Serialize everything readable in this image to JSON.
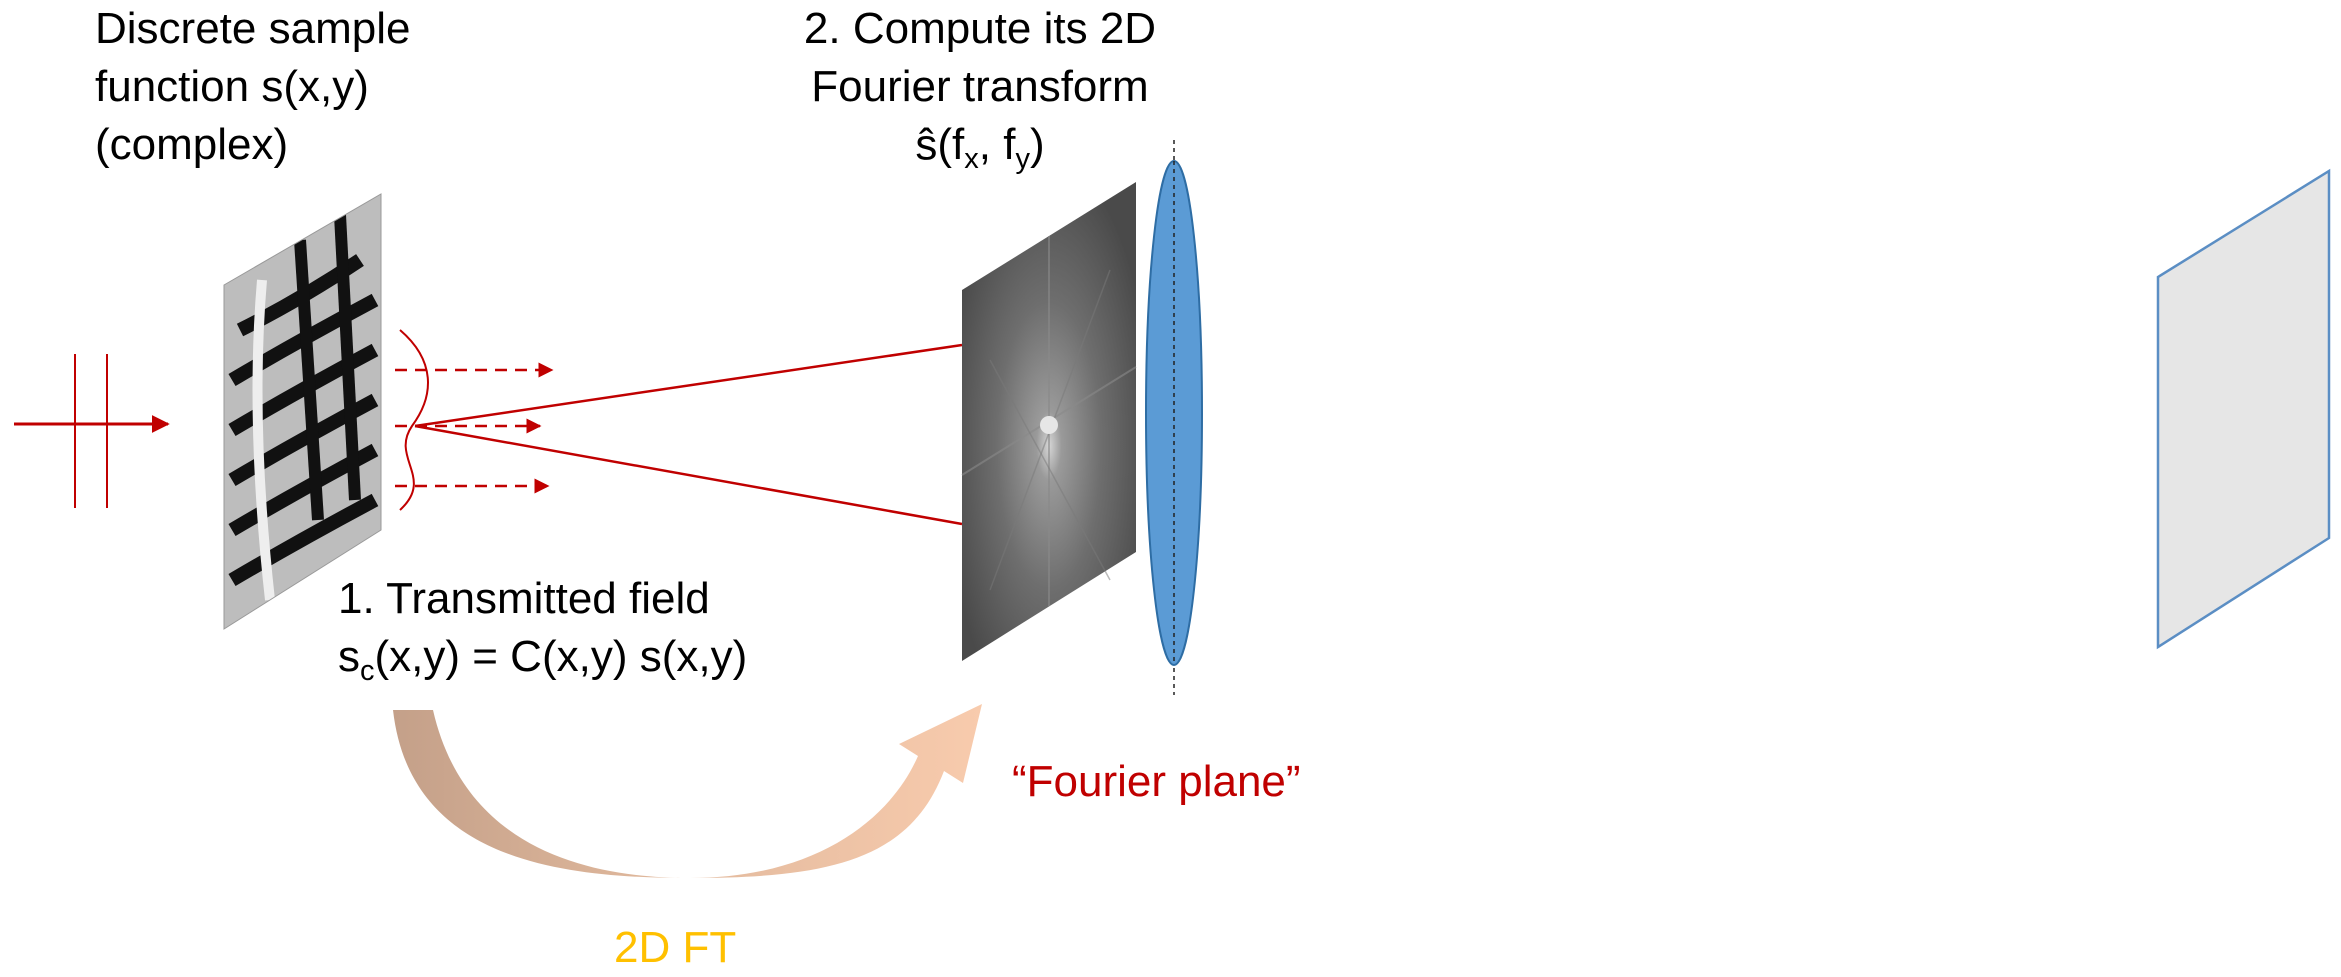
{
  "colors": {
    "beam_red": "#c00000",
    "lens_blue": "#5b9bd5",
    "lens_edge": "#2e6da4",
    "ft_label": "#ffc000",
    "arrow_start": "#c4a089",
    "arrow_end": "#f8cbad",
    "screen_fill": "#e6e6e6",
    "screen_edge": "#5b8ec4"
  },
  "labels": {
    "sample_line1": "Discrete sample",
    "sample_line2": "function s(x,y)",
    "sample_line3": "(complex)",
    "compute_line1": "2. Compute its 2D",
    "compute_line2": "Fourier transform",
    "compute_f": "ŝ(f",
    "compute_sub_x": "x",
    "compute_mid": ", f",
    "compute_sub_y": "y",
    "compute_close": ")",
    "transmit_line1": "1. Transmitted field",
    "transmit_s": "s",
    "transmit_sub": "c",
    "transmit_rest": "(x,y) = C(x,y) s(x,y)",
    "fourier_plane": "“Fourier plane”",
    "ft_arrow": "2D FT"
  },
  "icons": {
    "sample": "zebra-photo",
    "spectrum": "fourier-magnitude-image",
    "lens": "lens-ellipse",
    "screen": "detector-plane"
  }
}
